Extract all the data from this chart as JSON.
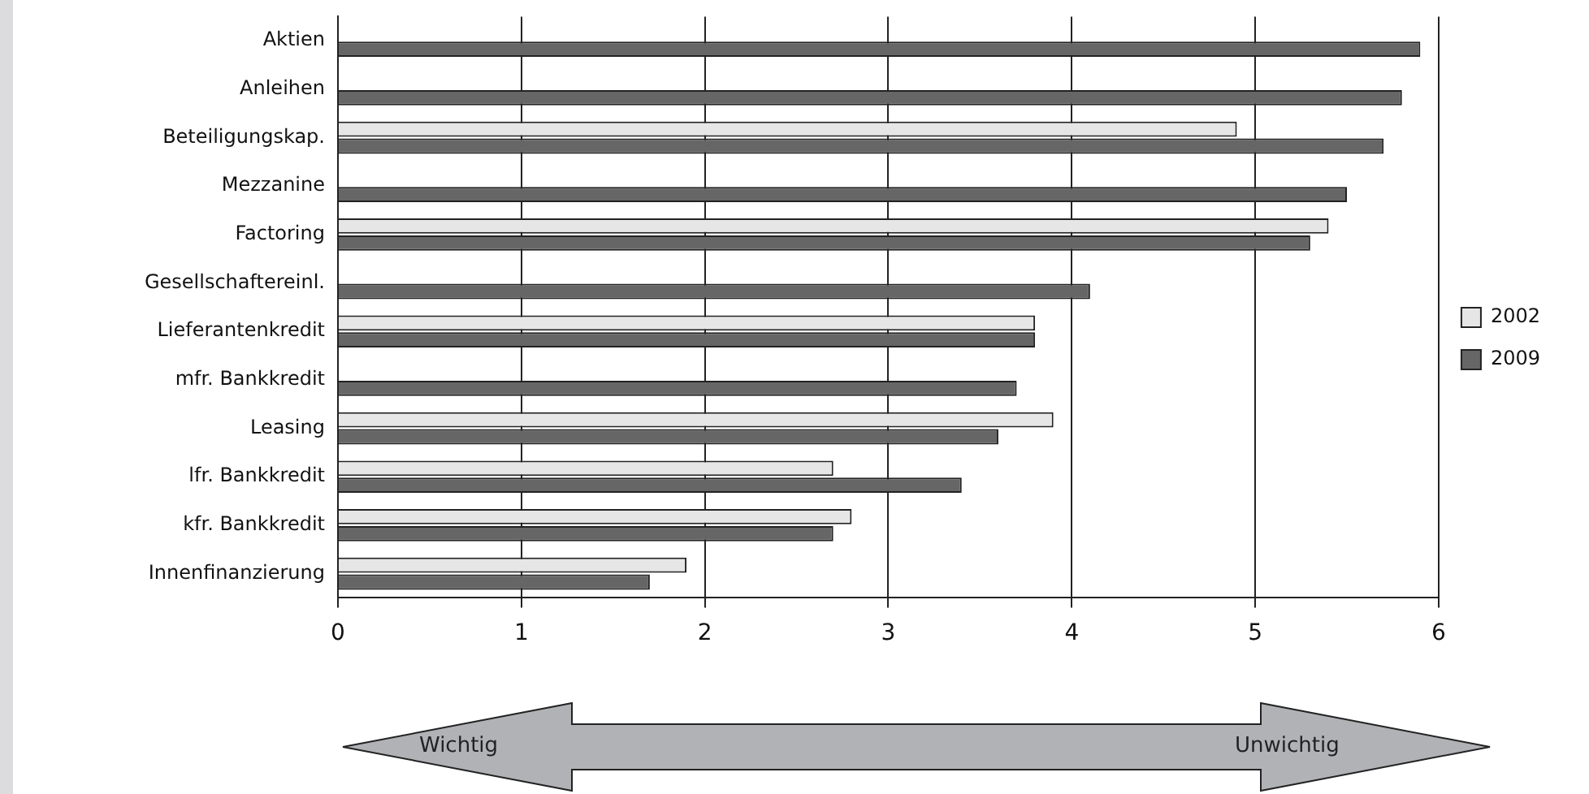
{
  "chart_data": {
    "type": "bar",
    "orientation": "horizontal",
    "categories": [
      "Aktien",
      "Anleihen",
      "Beteiligungskap.",
      "Mezzanine",
      "Factoring",
      "Gesellschaftereinl.",
      "Lieferantenkredit",
      "mfr. Bankkredit",
      "Leasing",
      "lfr. Bankkredit",
      "kfr. Bankkredit",
      "Innenfinanzierung"
    ],
    "series": [
      {
        "name": "2002",
        "color": "#e6e6e6",
        "values": [
          null,
          null,
          4.9,
          null,
          5.4,
          null,
          3.8,
          null,
          3.9,
          2.7,
          2.8,
          1.9
        ]
      },
      {
        "name": "2009",
        "color": "#666666",
        "values": [
          5.9,
          5.8,
          5.7,
          5.5,
          5.3,
          4.1,
          3.8,
          3.7,
          3.6,
          3.4,
          2.7,
          1.7
        ]
      }
    ],
    "xlim": [
      0,
      6
    ],
    "xticks": [
      0,
      1,
      2,
      3,
      4,
      5,
      6
    ],
    "grid": "x",
    "legend": "right",
    "annotations": [
      "Wichtig",
      "Unwichtig"
    ]
  }
}
